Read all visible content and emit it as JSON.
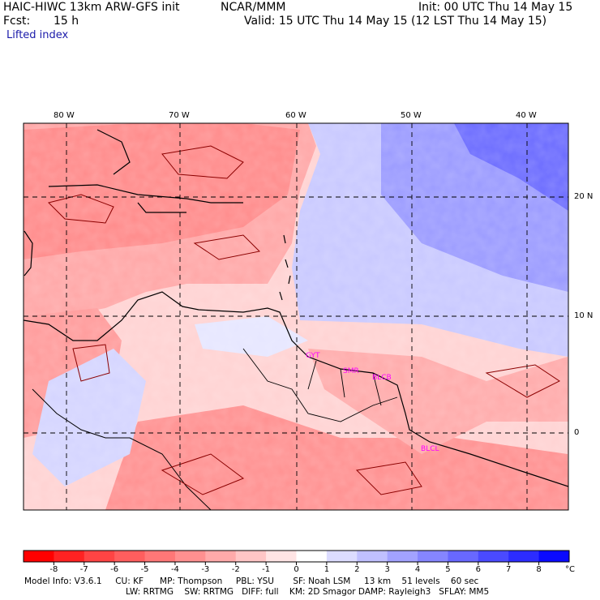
{
  "header": {
    "model": "HAIC-HIWC 13km ARW-GFS init",
    "center": "NCAR/MMM",
    "init": "Init: 00 UTC Thu 14 May 15",
    "fcst_label": "Fcst:",
    "fcst_value": "15 h",
    "valid": "Valid: 15 UTC Thu 14 May 15 (12 LST Thu 14 May 15)",
    "field": "Lifted index"
  },
  "map": {
    "lon_labels": [
      "80 W",
      "70 W",
      "60 W",
      "50 W",
      "40 W"
    ],
    "lat_labels": [
      "20 N",
      "10 N",
      "0"
    ],
    "station_labels": [
      "GYT",
      "SMR",
      "BLCB",
      "BLCL"
    ],
    "colors": {
      "negative": "#ff3333",
      "positive": "#2233ee",
      "coast": "#000000",
      "station": "#ff00ff"
    }
  },
  "colorbar": {
    "ticks": [
      "-8",
      "-7",
      "-6",
      "-5",
      "-4",
      "-3",
      "-2",
      "-1",
      "0",
      "1",
      "2",
      "3",
      "4",
      "5",
      "6",
      "7",
      "8"
    ],
    "unit": "°C",
    "colors": [
      "#ff0000",
      "#ff2222",
      "#ff4444",
      "#ff5e5e",
      "#ff7777",
      "#ff9090",
      "#ffaaaa",
      "#ffc6c6",
      "#ffe4e4",
      "#ffffff",
      "#dcdcff",
      "#c0c0ff",
      "#a2a2ff",
      "#8585ff",
      "#6868ff",
      "#4a4aff",
      "#2c2cff",
      "#0a0aff"
    ]
  },
  "footer": {
    "line1": "Model Info: V3.6.1     CU: KF      MP: Thompson     PBL: YSU       SF: Noah LSM     13 km    51 levels    60 sec",
    "line2": "LW: RRTMG    SW: RRTMG   DIFF: full    KM: 2D Smagor DAMP: Rayleigh3   SFLAY: MM5"
  }
}
